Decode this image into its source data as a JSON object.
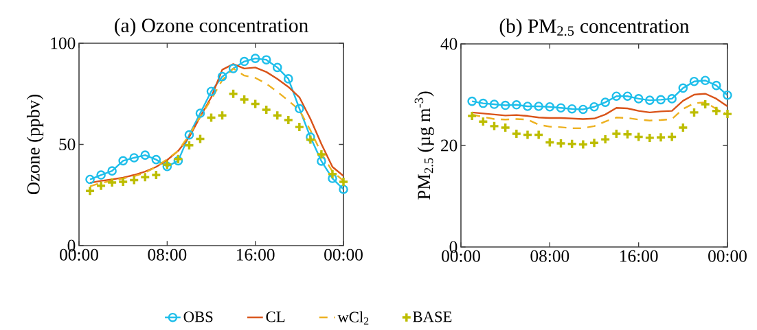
{
  "chart_data": [
    {
      "type": "line",
      "title": "(a)  Ozone concentration",
      "ylabel": "Ozone (ppbv)",
      "xlim": [
        0,
        24
      ],
      "xticks": [
        {
          "value": 0,
          "label": "00:00"
        },
        {
          "value": 8,
          "label": "08:00"
        },
        {
          "value": 16,
          "label": "16:00"
        },
        {
          "value": 24,
          "label": "00:00"
        }
      ],
      "ylim": [
        0,
        100
      ],
      "yticks": [
        0,
        50,
        100
      ],
      "legend": "bottom",
      "x": [
        1,
        2,
        3,
        4,
        5,
        6,
        7,
        8,
        9,
        10,
        11,
        12,
        13,
        14,
        15,
        16,
        17,
        18,
        19,
        20,
        21,
        22,
        23,
        24
      ],
      "series": [
        {
          "name": "OBS",
          "color": "#1ebeea",
          "marker": "circle",
          "line_style": "solid",
          "values": [
            32.7,
            34.9,
            36.9,
            41.9,
            43.4,
            44.7,
            42.5,
            39.1,
            41.9,
            54.7,
            65.4,
            76.2,
            83.5,
            87.5,
            91,
            92.5,
            91.8,
            88,
            82.4,
            67.7,
            53.6,
            41.7,
            33.2,
            27.8
          ]
        },
        {
          "name": "CL",
          "color": "#d95319",
          "marker": "none",
          "line_style": "solid",
          "values": [
            31,
            32,
            32.7,
            33.6,
            34.9,
            36.6,
            38.9,
            42.3,
            46.8,
            53.6,
            63.7,
            73.3,
            86.9,
            89.7,
            87.5,
            88,
            85.8,
            82.4,
            78.4,
            73.3,
            62.6,
            50.2,
            38.9,
            34.4
          ]
        },
        {
          "name": "wCl$_{2}$",
          "color": "#edb120",
          "marker": "none",
          "line_style": "dashed",
          "values": [
            29.3,
            31,
            32,
            33.2,
            34.3,
            36,
            38.9,
            42.8,
            46.8,
            54.7,
            63.7,
            72.2,
            81.8,
            87.5,
            84,
            82.9,
            80,
            76,
            71.6,
            67,
            57,
            45.6,
            36.6,
            32
          ]
        },
        {
          "name": "BASE",
          "type": "scatter",
          "color": "#bdbd00",
          "marker": "cross",
          "values": [
            27,
            29.6,
            31.2,
            31.5,
            32.4,
            33.8,
            34.9,
            40,
            42.8,
            49.6,
            52.7,
            63.2,
            64.3,
            75,
            72.2,
            70,
            67.1,
            64.3,
            62,
            58.6,
            52.4,
            45.1,
            35.3,
            31.5
          ]
        }
      ]
    },
    {
      "type": "line",
      "title": "(b) PM$_{2.5}$ concentration",
      "ylabel": "PM$_{2.5}$ (µg m$^{-3}$)",
      "xlim": [
        0,
        24
      ],
      "xticks": [
        {
          "value": 0,
          "label": "00:00"
        },
        {
          "value": 8,
          "label": "08:00"
        },
        {
          "value": 16,
          "label": "16:00"
        },
        {
          "value": 24,
          "label": "00:00"
        }
      ],
      "ylim": [
        0,
        40
      ],
      "yticks": [
        0,
        20,
        40
      ],
      "x": [
        1,
        2,
        3,
        4,
        5,
        6,
        7,
        8,
        9,
        10,
        11,
        12,
        13,
        14,
        15,
        16,
        17,
        18,
        19,
        20,
        21,
        22,
        23,
        24
      ],
      "series": [
        {
          "color": "#1ebeea",
          "marker": "circle",
          "line_style": "solid",
          "values": [
            28.7,
            28.3,
            28.1,
            27.9,
            28,
            27.7,
            27.7,
            27.6,
            27.4,
            27.2,
            27.1,
            27.6,
            28.5,
            29.7,
            29.7,
            29.2,
            28.9,
            29,
            29.2,
            31.3,
            32.6,
            32.8,
            31.8,
            29.9
          ]
        },
        {
          "color": "#d95319",
          "marker": "none",
          "line_style": "solid",
          "values": [
            26.5,
            26.3,
            26.1,
            25.9,
            26,
            25.8,
            25.5,
            25.4,
            25.4,
            25.3,
            25.2,
            25.3,
            26.1,
            27.4,
            27.3,
            26.8,
            26.5,
            26.7,
            26.8,
            28.8,
            30,
            30.2,
            29.2,
            27.7
          ]
        },
        {
          "color": "#edb120",
          "marker": "none",
          "line_style": "dashed",
          "values": [
            26.1,
            25.6,
            25.2,
            25.1,
            25.2,
            25.1,
            24.1,
            23.7,
            23.6,
            23.4,
            23.4,
            23.8,
            24.7,
            25.5,
            25.4,
            25.1,
            24.9,
            25,
            25.2,
            27.2,
            28.3,
            28.5,
            27.2,
            26.1
          ]
        },
        {
          "type": "scatter",
          "color": "#bdbd00",
          "marker": "cross",
          "values": [
            25.8,
            24.7,
            23.8,
            23.5,
            22.3,
            22.1,
            22.1,
            20.6,
            20.4,
            20.3,
            20.2,
            20.5,
            21.2,
            22.3,
            22.2,
            21.7,
            21.5,
            21.6,
            21.7,
            23.5,
            26.5,
            28.1,
            26.8,
            26.2
          ]
        }
      ]
    }
  ]
}
